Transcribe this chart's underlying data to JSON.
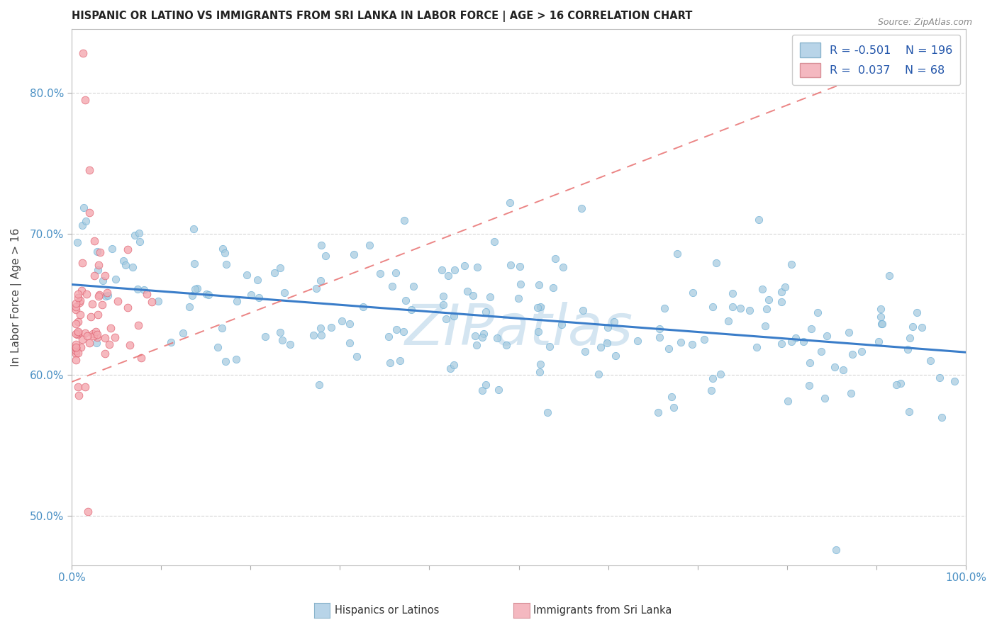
{
  "title": "HISPANIC OR LATINO VS IMMIGRANTS FROM SRI LANKA IN LABOR FORCE | AGE > 16 CORRELATION CHART",
  "source": "Source: ZipAtlas.com",
  "ylabel": "In Labor Force | Age > 16",
  "xlabel": "",
  "xlim": [
    0.0,
    1.0
  ],
  "ylim": [
    0.465,
    0.845
  ],
  "yticks": [
    0.5,
    0.6,
    0.7,
    0.8
  ],
  "ytick_labels": [
    "50.0%",
    "60.0%",
    "70.0%",
    "80.0%"
  ],
  "xticks": [
    0.0,
    0.1,
    0.2,
    0.3,
    0.4,
    0.5,
    0.6,
    0.7,
    0.8,
    0.9,
    1.0
  ],
  "xtick_labels_show": [
    "0.0%",
    "100.0%"
  ],
  "blue_R": -0.501,
  "blue_N": 196,
  "pink_R": 0.037,
  "pink_N": 68,
  "blue_color": "#a8cce0",
  "blue_edge": "#6aaed6",
  "pink_color": "#f4a8b0",
  "pink_edge": "#e06070",
  "blue_line_color": "#3a7dc9",
  "pink_line_color": "#e87070",
  "watermark": "ZIPatlas",
  "watermark_color": "#b8d4e8",
  "legend_label_blue": "Hispanics or Latinos",
  "legend_label_pink": "Immigrants from Sri Lanka",
  "blue_trend_start_y": 0.664,
  "blue_trend_end_y": 0.616,
  "pink_trend_start_x": 0.0,
  "pink_trend_start_y": 0.595,
  "pink_trend_end_x": 1.0,
  "pink_trend_end_y": 0.84
}
